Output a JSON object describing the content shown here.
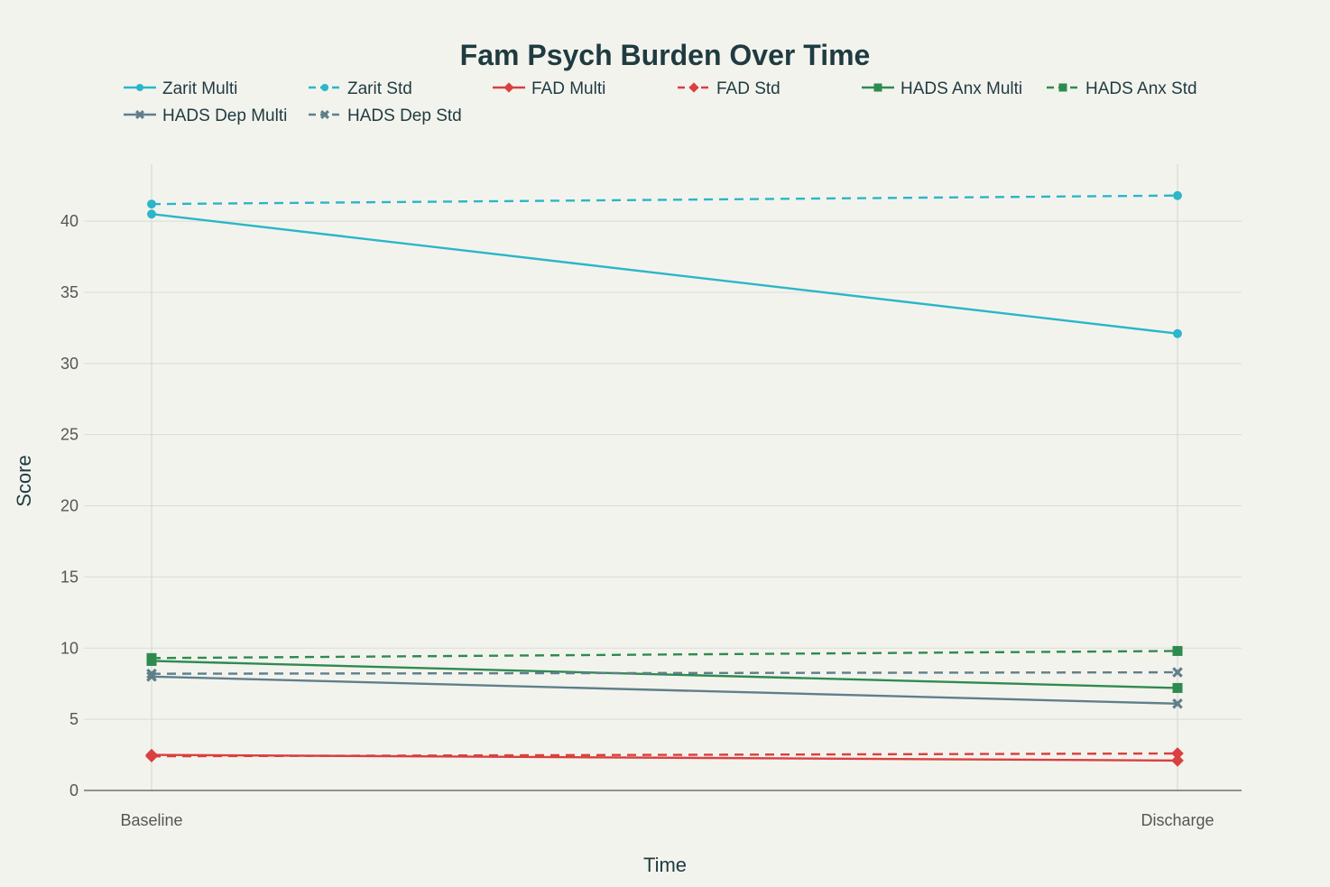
{
  "chart_data": {
    "type": "line",
    "title": "Fam Psych Burden Over Time",
    "xlabel": "Time",
    "ylabel": "Score",
    "categories": [
      "Baseline",
      "Discharge"
    ],
    "ylim": [
      0,
      44
    ],
    "yticks": [
      0,
      5,
      10,
      15,
      20,
      25,
      30,
      35,
      40
    ],
    "grid": true,
    "legend_position": "top",
    "series": [
      {
        "name": "Zarit Multi",
        "values": [
          40.5,
          32.1
        ],
        "color": "#2bb6c9",
        "dash": "solid",
        "marker": "circle"
      },
      {
        "name": "Zarit Std",
        "values": [
          41.2,
          41.8
        ],
        "color": "#2bb6c9",
        "dash": "dashed",
        "marker": "circle"
      },
      {
        "name": "FAD Multi",
        "values": [
          2.5,
          2.1
        ],
        "color": "#d9403f",
        "dash": "solid",
        "marker": "diamond"
      },
      {
        "name": "FAD Std",
        "values": [
          2.4,
          2.6
        ],
        "color": "#d9403f",
        "dash": "dashed",
        "marker": "diamond"
      },
      {
        "name": "HADS Anx Multi",
        "values": [
          9.1,
          7.2
        ],
        "color": "#2e8b4f",
        "dash": "solid",
        "marker": "square"
      },
      {
        "name": "HADS Anx Std",
        "values": [
          9.3,
          9.8
        ],
        "color": "#2e8b4f",
        "dash": "dashed",
        "marker": "square"
      },
      {
        "name": "HADS Dep Multi",
        "values": [
          8.0,
          6.1
        ],
        "color": "#5f7f8a",
        "dash": "solid",
        "marker": "x"
      },
      {
        "name": "HADS Dep Std",
        "values": [
          8.2,
          8.3
        ],
        "color": "#5f7f8a",
        "dash": "dashed",
        "marker": "x"
      }
    ]
  }
}
